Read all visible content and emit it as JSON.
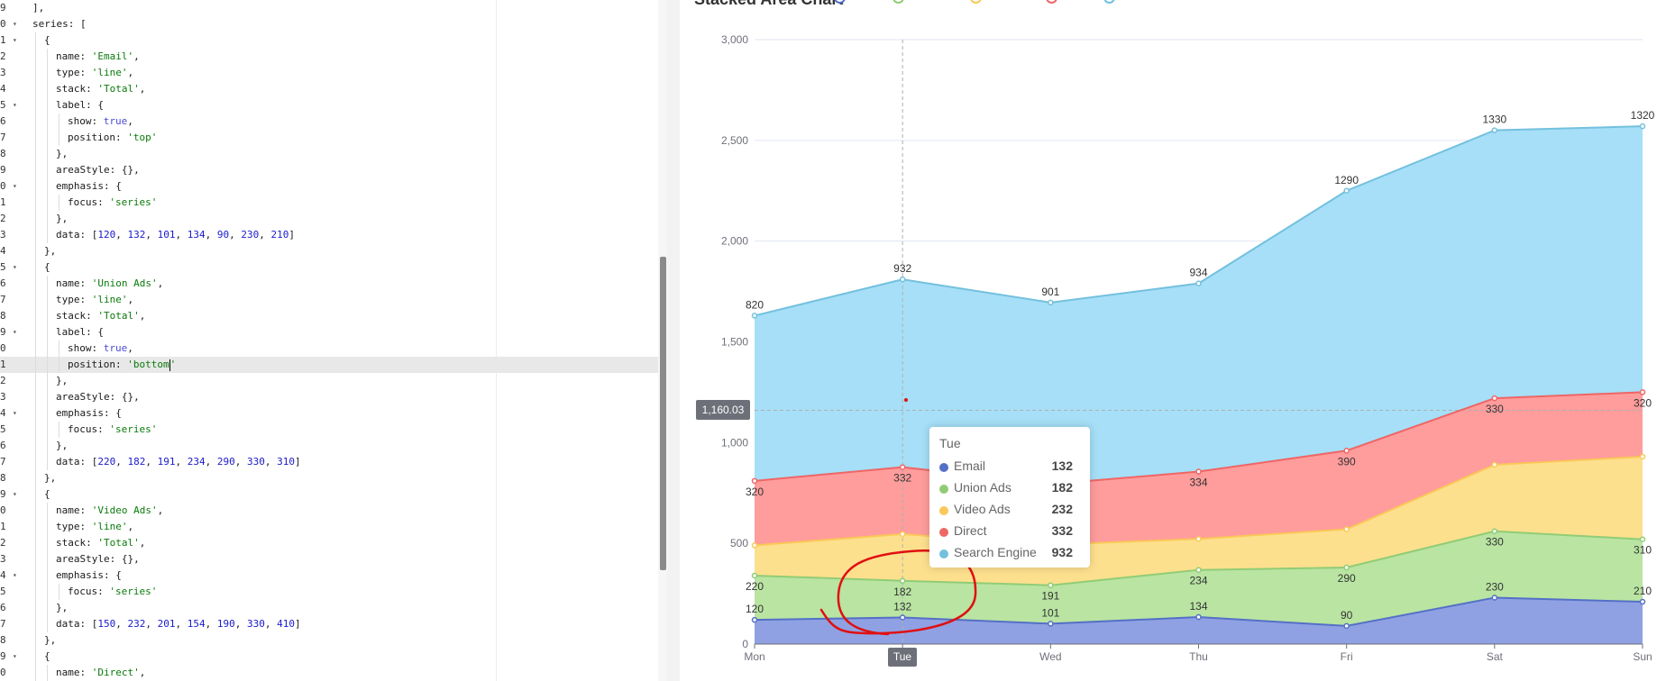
{
  "editor": {
    "lines": [
      {
        "num": "9",
        "fold": false,
        "indent": 0,
        "tokens": [
          [
            "p",
            "],"
          ]
        ]
      },
      {
        "num": "0",
        "fold": true,
        "indent": 0,
        "tokens": [
          [
            "p",
            "series: ["
          ]
        ]
      },
      {
        "num": "1",
        "fold": true,
        "indent": 1,
        "tokens": [
          [
            "p",
            "{"
          ]
        ]
      },
      {
        "num": "2",
        "fold": false,
        "indent": 2,
        "tokens": [
          [
            "p",
            "name: "
          ],
          [
            "s",
            "'Email'"
          ],
          [
            "p",
            ","
          ]
        ]
      },
      {
        "num": "3",
        "fold": false,
        "indent": 2,
        "tokens": [
          [
            "p",
            "type: "
          ],
          [
            "s",
            "'line'"
          ],
          [
            "p",
            ","
          ]
        ]
      },
      {
        "num": "4",
        "fold": false,
        "indent": 2,
        "tokens": [
          [
            "p",
            "stack: "
          ],
          [
            "s",
            "'Total'"
          ],
          [
            "p",
            ","
          ]
        ]
      },
      {
        "num": "5",
        "fold": true,
        "indent": 2,
        "tokens": [
          [
            "p",
            "label: {"
          ]
        ]
      },
      {
        "num": "6",
        "fold": false,
        "indent": 3,
        "tokens": [
          [
            "p",
            "show: "
          ],
          [
            "k",
            "true"
          ],
          [
            "p",
            ","
          ]
        ]
      },
      {
        "num": "7",
        "fold": false,
        "indent": 3,
        "tokens": [
          [
            "p",
            "position: "
          ],
          [
            "s",
            "'top'"
          ]
        ]
      },
      {
        "num": "8",
        "fold": false,
        "indent": 2,
        "tokens": [
          [
            "p",
            "},"
          ]
        ]
      },
      {
        "num": "9",
        "fold": false,
        "indent": 2,
        "tokens": [
          [
            "p",
            "areaStyle: {},"
          ]
        ]
      },
      {
        "num": "0",
        "fold": true,
        "indent": 2,
        "tokens": [
          [
            "p",
            "emphasis: {"
          ]
        ]
      },
      {
        "num": "1",
        "fold": false,
        "indent": 3,
        "tokens": [
          [
            "p",
            "focus: "
          ],
          [
            "s",
            "'series'"
          ]
        ]
      },
      {
        "num": "2",
        "fold": false,
        "indent": 2,
        "tokens": [
          [
            "p",
            "},"
          ]
        ]
      },
      {
        "num": "3",
        "fold": false,
        "indent": 2,
        "tokens": [
          [
            "p",
            "data: ["
          ],
          [
            "n",
            "120"
          ],
          [
            "p",
            ", "
          ],
          [
            "n",
            "132"
          ],
          [
            "p",
            ", "
          ],
          [
            "n",
            "101"
          ],
          [
            "p",
            ", "
          ],
          [
            "n",
            "134"
          ],
          [
            "p",
            ", "
          ],
          [
            "n",
            "90"
          ],
          [
            "p",
            ", "
          ],
          [
            "n",
            "230"
          ],
          [
            "p",
            ", "
          ],
          [
            "n",
            "210"
          ],
          [
            "p",
            "]"
          ]
        ]
      },
      {
        "num": "4",
        "fold": false,
        "indent": 1,
        "tokens": [
          [
            "p",
            "},"
          ]
        ]
      },
      {
        "num": "5",
        "fold": true,
        "indent": 1,
        "tokens": [
          [
            "p",
            "{"
          ]
        ]
      },
      {
        "num": "6",
        "fold": false,
        "indent": 2,
        "tokens": [
          [
            "p",
            "name: "
          ],
          [
            "s",
            "'Union Ads'"
          ],
          [
            "p",
            ","
          ]
        ]
      },
      {
        "num": "7",
        "fold": false,
        "indent": 2,
        "tokens": [
          [
            "p",
            "type: "
          ],
          [
            "s",
            "'line'"
          ],
          [
            "p",
            ","
          ]
        ]
      },
      {
        "num": "8",
        "fold": false,
        "indent": 2,
        "tokens": [
          [
            "p",
            "stack: "
          ],
          [
            "s",
            "'Total'"
          ],
          [
            "p",
            ","
          ]
        ]
      },
      {
        "num": "9",
        "fold": true,
        "indent": 2,
        "tokens": [
          [
            "p",
            "label: {"
          ]
        ]
      },
      {
        "num": "0",
        "fold": false,
        "indent": 3,
        "tokens": [
          [
            "p",
            "show: "
          ],
          [
            "k",
            "true"
          ],
          [
            "p",
            ","
          ]
        ]
      },
      {
        "num": "1",
        "fold": false,
        "indent": 3,
        "active": true,
        "tokens": [
          [
            "p",
            "position: "
          ],
          [
            "s",
            "'bottom"
          ],
          [
            "c",
            ""
          ],
          [
            "s",
            "'"
          ]
        ]
      },
      {
        "num": "2",
        "fold": false,
        "indent": 2,
        "tokens": [
          [
            "p",
            "},"
          ]
        ]
      },
      {
        "num": "3",
        "fold": false,
        "indent": 2,
        "tokens": [
          [
            "p",
            "areaStyle: {},"
          ]
        ]
      },
      {
        "num": "4",
        "fold": true,
        "indent": 2,
        "tokens": [
          [
            "p",
            "emphasis: {"
          ]
        ]
      },
      {
        "num": "5",
        "fold": false,
        "indent": 3,
        "tokens": [
          [
            "p",
            "focus: "
          ],
          [
            "s",
            "'series'"
          ]
        ]
      },
      {
        "num": "6",
        "fold": false,
        "indent": 2,
        "tokens": [
          [
            "p",
            "},"
          ]
        ]
      },
      {
        "num": "7",
        "fold": false,
        "indent": 2,
        "tokens": [
          [
            "p",
            "data: ["
          ],
          [
            "n",
            "220"
          ],
          [
            "p",
            ", "
          ],
          [
            "n",
            "182"
          ],
          [
            "p",
            ", "
          ],
          [
            "n",
            "191"
          ],
          [
            "p",
            ", "
          ],
          [
            "n",
            "234"
          ],
          [
            "p",
            ", "
          ],
          [
            "n",
            "290"
          ],
          [
            "p",
            ", "
          ],
          [
            "n",
            "330"
          ],
          [
            "p",
            ", "
          ],
          [
            "n",
            "310"
          ],
          [
            "p",
            "]"
          ]
        ]
      },
      {
        "num": "8",
        "fold": false,
        "indent": 1,
        "tokens": [
          [
            "p",
            "},"
          ]
        ]
      },
      {
        "num": "9",
        "fold": true,
        "indent": 1,
        "tokens": [
          [
            "p",
            "{"
          ]
        ]
      },
      {
        "num": "0",
        "fold": false,
        "indent": 2,
        "tokens": [
          [
            "p",
            "name: "
          ],
          [
            "s",
            "'Video Ads'"
          ],
          [
            "p",
            ","
          ]
        ]
      },
      {
        "num": "1",
        "fold": false,
        "indent": 2,
        "tokens": [
          [
            "p",
            "type: "
          ],
          [
            "s",
            "'line'"
          ],
          [
            "p",
            ","
          ]
        ]
      },
      {
        "num": "2",
        "fold": false,
        "indent": 2,
        "tokens": [
          [
            "p",
            "stack: "
          ],
          [
            "s",
            "'Total'"
          ],
          [
            "p",
            ","
          ]
        ]
      },
      {
        "num": "3",
        "fold": false,
        "indent": 2,
        "tokens": [
          [
            "p",
            "areaStyle: {},"
          ]
        ]
      },
      {
        "num": "4",
        "fold": true,
        "indent": 2,
        "tokens": [
          [
            "p",
            "emphasis: {"
          ]
        ]
      },
      {
        "num": "5",
        "fold": false,
        "indent": 3,
        "tokens": [
          [
            "p",
            "focus: "
          ],
          [
            "s",
            "'series'"
          ]
        ]
      },
      {
        "num": "6",
        "fold": false,
        "indent": 2,
        "tokens": [
          [
            "p",
            "},"
          ]
        ]
      },
      {
        "num": "7",
        "fold": false,
        "indent": 2,
        "tokens": [
          [
            "p",
            "data: ["
          ],
          [
            "n",
            "150"
          ],
          [
            "p",
            ", "
          ],
          [
            "n",
            "232"
          ],
          [
            "p",
            ", "
          ],
          [
            "n",
            "201"
          ],
          [
            "p",
            ", "
          ],
          [
            "n",
            "154"
          ],
          [
            "p",
            ", "
          ],
          [
            "n",
            "190"
          ],
          [
            "p",
            ", "
          ],
          [
            "n",
            "330"
          ],
          [
            "p",
            ", "
          ],
          [
            "n",
            "410"
          ],
          [
            "p",
            "]"
          ]
        ]
      },
      {
        "num": "8",
        "fold": false,
        "indent": 1,
        "tokens": [
          [
            "p",
            "},"
          ]
        ]
      },
      {
        "num": "9",
        "fold": true,
        "indent": 1,
        "tokens": [
          [
            "p",
            "{"
          ]
        ]
      },
      {
        "num": "0",
        "fold": false,
        "indent": 2,
        "tokens": [
          [
            "p",
            "name: "
          ],
          [
            "s",
            "'Direct'"
          ],
          [
            "p",
            ","
          ]
        ]
      }
    ]
  },
  "chart": {
    "title": "Stacked Area Chart",
    "legend_colors": [
      "#5470c6",
      "#91cc75",
      "#fac858",
      "#ee6666",
      "#73c0de"
    ],
    "y_pointer_label": "1,160.03",
    "x_pointer_label": "Tue",
    "annotation_color": "#e01010"
  },
  "tooltip": {
    "title": "Tue",
    "rows": [
      {
        "name": "Email",
        "value": "132",
        "color": "#5470c6"
      },
      {
        "name": "Union Ads",
        "value": "182",
        "color": "#91cc75"
      },
      {
        "name": "Video Ads",
        "value": "232",
        "color": "#fac858"
      },
      {
        "name": "Direct",
        "value": "332",
        "color": "#ee6666"
      },
      {
        "name": "Search Engine",
        "value": "932",
        "color": "#73c0de"
      }
    ]
  },
  "chart_data": {
    "type": "area",
    "title": "Stacked Area Chart",
    "stacked": true,
    "categories": [
      "Mon",
      "Tue",
      "Wed",
      "Thu",
      "Fri",
      "Sat",
      "Sun"
    ],
    "yticks": [
      "0",
      "500",
      "1,000",
      "1,500",
      "2,000",
      "2,500",
      "3,000"
    ],
    "ylim": [
      0,
      3000
    ],
    "grid": true,
    "series": [
      {
        "name": "Email",
        "color": "#5470c6",
        "fill": "#8fa1e3",
        "values": [
          120,
          132,
          101,
          134,
          90,
          230,
          210
        ],
        "label_position": "top",
        "labels_shown": [
          "120",
          "132",
          "101",
          "134",
          "90",
          "230",
          "210"
        ]
      },
      {
        "name": "Union Ads",
        "color": "#91cc75",
        "fill": "#b9e4a2",
        "values": [
          220,
          182,
          191,
          234,
          290,
          330,
          310
        ],
        "label_position": "bottom",
        "labels_shown": [
          "220",
          "182",
          "191",
          "234",
          "290",
          "330",
          "310"
        ]
      },
      {
        "name": "Video Ads",
        "color": "#fac858",
        "fill": "#fde08e",
        "values": [
          150,
          232,
          201,
          154,
          190,
          330,
          410
        ],
        "label_position": "none",
        "labels_shown": []
      },
      {
        "name": "Direct",
        "color": "#ee6666",
        "fill": "#ff9c9c",
        "values": [
          320,
          332,
          301,
          334,
          390,
          330,
          320
        ],
        "label_position": "bottom",
        "labels_shown": [
          "320",
          "332",
          "",
          "334",
          "390",
          "330",
          "320"
        ]
      },
      {
        "name": "Search Engine",
        "color": "#73c0de",
        "fill": "#a6dff7",
        "values": [
          820,
          932,
          901,
          934,
          1290,
          1330,
          1320
        ],
        "label_position": "top",
        "labels_shown": [
          "820",
          "932",
          "901",
          "934",
          "1290",
          "1330",
          "1320"
        ]
      }
    ]
  }
}
